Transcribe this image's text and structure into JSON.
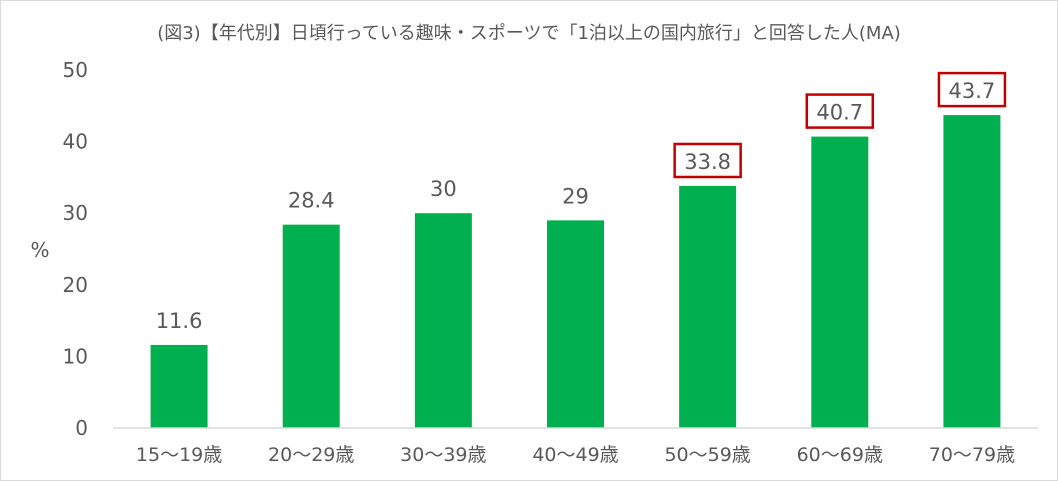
{
  "chart_data": {
    "type": "bar",
    "title": "(図3)【年代別】日頃行っている趣味・スポーツで「1泊以上の国内旅行」と回答した人(MA)",
    "ylabel": "%",
    "xlabel": "",
    "ylim": [
      0,
      50
    ],
    "yticks": [
      0,
      10,
      20,
      30,
      40,
      50
    ],
    "categories": [
      "15〜19歳",
      "20〜29歳",
      "30〜39歳",
      "40〜49歳",
      "50〜59歳",
      "60〜69歳",
      "70〜79歳"
    ],
    "values": [
      11.6,
      28.4,
      30,
      29,
      33.8,
      40.7,
      43.7
    ],
    "value_labels": [
      "11.6",
      "28.4",
      "30",
      "29",
      "33.8",
      "40.7",
      "43.7"
    ],
    "highlighted_categories": [
      "50〜59歳",
      "60〜69歳",
      "70〜79歳"
    ],
    "grid": false,
    "legend": "none",
    "colors": {
      "bar": "#00b050",
      "highlight_box": "#c00000",
      "text": "#595959",
      "axis": "#d9d9d9"
    }
  }
}
